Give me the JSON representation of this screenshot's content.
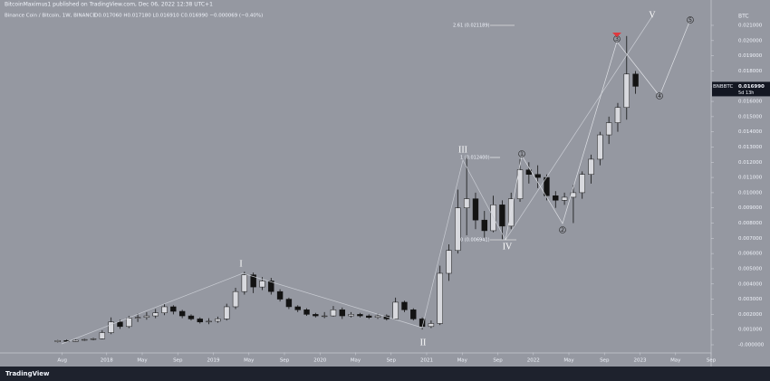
{
  "header": "BitcoinMaximus1 published on TradingView.com, Dec 06, 2022 12:38 UTC+1",
  "footer": "TradingView",
  "chart_data": {
    "type": "candlestick",
    "title": "Binance Coin / Bitcoin, 1W, BINANCE",
    "ohlc_text": "O0.017060  H0.017180  L0.016910  C0.016990  −0.000069 (−0.40%)",
    "y_axis_label": "BTC",
    "symbol": "BNBBTC",
    "last_price": {
      "value": 0.01699,
      "label": "0.016990"
    },
    "countdown": "5d 13h",
    "up_color": "#d8d9de",
    "down_color": "#131313",
    "wick_color": "#131313",
    "x": [
      "2017-07",
      "2017-08",
      "2017-09",
      "2017-10",
      "2017-11",
      "2017-12",
      "2018-01",
      "2018-02",
      "2018-03",
      "2018-04",
      "2018-05",
      "2018-06",
      "2018-07",
      "2018-08",
      "2018-09",
      "2018-10",
      "2018-11",
      "2018-12",
      "2019-01",
      "2019-02",
      "2019-03",
      "2019-04",
      "2019-05",
      "2019-06",
      "2019-07",
      "2019-08",
      "2019-09",
      "2019-10",
      "2019-11",
      "2019-12",
      "2020-01",
      "2020-02",
      "2020-03",
      "2020-04",
      "2020-05",
      "2020-06",
      "2020-07",
      "2020-08",
      "2020-09",
      "2020-10",
      "2020-11",
      "2020-12",
      "2021-01",
      "2021-02",
      "2021-03",
      "2021-04",
      "2021-05",
      "2021-06",
      "2021-07",
      "2021-08",
      "2021-09",
      "2021-10",
      "2021-11",
      "2021-12",
      "2022-01",
      "2022-02",
      "2022-03",
      "2022-04",
      "2022-05",
      "2022-06",
      "2022-07",
      "2022-08",
      "2022-09",
      "2022-10",
      "2022-11",
      "2022-12"
    ],
    "open": [
      0.0002,
      0.00028,
      0.00022,
      0.0003,
      0.00035,
      0.0004,
      0.0008,
      0.0015,
      0.0012,
      0.00175,
      0.0018,
      0.0019,
      0.0021,
      0.0025,
      0.0022,
      0.0019,
      0.0017,
      0.0015,
      0.00155,
      0.0017,
      0.0025,
      0.0035,
      0.0046,
      0.0038,
      0.0042,
      0.0035,
      0.003,
      0.0025,
      0.0023,
      0.002,
      0.0019,
      0.0019,
      0.0023,
      0.0019,
      0.002,
      0.0019,
      0.0018,
      0.0019,
      0.0017,
      0.0028,
      0.0023,
      0.0017,
      0.0012,
      0.0014,
      0.0047,
      0.0062,
      0.009,
      0.0096,
      0.0082,
      0.0075,
      0.0092,
      0.0078,
      0.0096,
      0.0115,
      0.0112,
      0.011,
      0.0098,
      0.0095,
      0.0097,
      0.01,
      0.0112,
      0.0122,
      0.0138,
      0.0146,
      0.0156,
      0.0178
    ],
    "high": [
      0.00032,
      0.00034,
      0.00036,
      0.0004,
      0.00046,
      0.00095,
      0.0018,
      0.00165,
      0.0019,
      0.00205,
      0.00215,
      0.00235,
      0.0027,
      0.0026,
      0.0023,
      0.002,
      0.0018,
      0.00175,
      0.00185,
      0.0027,
      0.00375,
      0.0048,
      0.00475,
      0.00445,
      0.0044,
      0.00365,
      0.0031,
      0.0026,
      0.0024,
      0.0021,
      0.00215,
      0.00255,
      0.00245,
      0.00215,
      0.0021,
      0.002,
      0.00205,
      0.002,
      0.0031,
      0.0029,
      0.0024,
      0.0018,
      0.0016,
      0.0052,
      0.0066,
      0.0102,
      0.0124,
      0.01,
      0.0088,
      0.0098,
      0.0095,
      0.01,
      0.0122,
      0.012,
      0.0118,
      0.0112,
      0.0101,
      0.01,
      0.0105,
      0.0114,
      0.0125,
      0.014,
      0.015,
      0.0159,
      0.0203,
      0.018
    ],
    "low": [
      0.00015,
      0.00018,
      0.0002,
      0.00026,
      0.0003,
      0.00036,
      0.0007,
      0.00105,
      0.0011,
      0.0015,
      0.00165,
      0.00175,
      0.00195,
      0.002,
      0.00175,
      0.0016,
      0.0014,
      0.00135,
      0.00145,
      0.0016,
      0.00235,
      0.0033,
      0.0034,
      0.0036,
      0.0033,
      0.00285,
      0.00235,
      0.00215,
      0.0019,
      0.0018,
      0.00175,
      0.00185,
      0.0017,
      0.0018,
      0.0018,
      0.0017,
      0.0017,
      0.0016,
      0.00165,
      0.00215,
      0.0016,
      0.001,
      0.0011,
      0.0013,
      0.0042,
      0.006,
      0.0072,
      0.0076,
      0.007,
      0.0074,
      0.00694,
      0.0076,
      0.0094,
      0.0106,
      0.0103,
      0.0095,
      0.009,
      0.0092,
      0.008,
      0.0096,
      0.0106,
      0.0118,
      0.0132,
      0.014,
      0.0148,
      0.0165
    ],
    "close": [
      0.00028,
      0.00022,
      0.0003,
      0.00035,
      0.0004,
      0.0008,
      0.0015,
      0.0012,
      0.00175,
      0.0018,
      0.0019,
      0.0021,
      0.0025,
      0.0022,
      0.0019,
      0.0017,
      0.0015,
      0.00155,
      0.0017,
      0.0025,
      0.0035,
      0.0046,
      0.0038,
      0.0042,
      0.0035,
      0.003,
      0.0025,
      0.0023,
      0.002,
      0.0019,
      0.0019,
      0.0023,
      0.0019,
      0.002,
      0.0019,
      0.0018,
      0.0019,
      0.0017,
      0.0028,
      0.0023,
      0.0017,
      0.0012,
      0.0014,
      0.0047,
      0.0062,
      0.009,
      0.0096,
      0.0082,
      0.0075,
      0.0092,
      0.0078,
      0.0096,
      0.0115,
      0.0112,
      0.011,
      0.0098,
      0.0095,
      0.0097,
      0.01,
      0.0112,
      0.0122,
      0.0138,
      0.0146,
      0.0156,
      0.0178,
      0.01699
    ],
    "xlim": [
      "2017-01",
      "2023-09"
    ],
    "xticks": [
      {
        "value": "2017-08",
        "label": "Aug"
      },
      {
        "value": "2018-01",
        "label": "2018"
      },
      {
        "value": "2018-05",
        "label": "May"
      },
      {
        "value": "2018-09",
        "label": "Sep"
      },
      {
        "value": "2019-01",
        "label": "2019"
      },
      {
        "value": "2019-05",
        "label": "May"
      },
      {
        "value": "2019-09",
        "label": "Sep"
      },
      {
        "value": "2020-01",
        "label": "2020"
      },
      {
        "value": "2020-05",
        "label": "May"
      },
      {
        "value": "2020-09",
        "label": "Sep"
      },
      {
        "value": "2021-01",
        "label": "2021"
      },
      {
        "value": "2021-05",
        "label": "May"
      },
      {
        "value": "2021-09",
        "label": "Sep"
      },
      {
        "value": "2022-01",
        "label": "2022"
      },
      {
        "value": "2022-05",
        "label": "May"
      },
      {
        "value": "2022-09",
        "label": "Sep"
      },
      {
        "value": "2023-01",
        "label": "2023"
      },
      {
        "value": "2023-05",
        "label": "May"
      },
      {
        "value": "2023-09",
        "label": "Sep"
      }
    ],
    "ylim": [
      -0.0005,
      0.0225
    ],
    "yticks": [
      {
        "value": 0.021,
        "label": "0.021000"
      },
      {
        "value": 0.02,
        "label": "0.020000"
      },
      {
        "value": 0.019,
        "label": "0.019000"
      },
      {
        "value": 0.018,
        "label": "0.018000"
      },
      {
        "value": 0.017,
        "label": "0.017000"
      },
      {
        "value": 0.016,
        "label": "0.016000"
      },
      {
        "value": 0.015,
        "label": "0.015000"
      },
      {
        "value": 0.014,
        "label": "0.014000"
      },
      {
        "value": 0.013,
        "label": "0.013000"
      },
      {
        "value": 0.012,
        "label": "0.012000"
      },
      {
        "value": 0.011,
        "label": "0.011000"
      },
      {
        "value": 0.01,
        "label": "0.010000"
      },
      {
        "value": 0.009,
        "label": "0.009000"
      },
      {
        "value": 0.008,
        "label": "0.008000"
      },
      {
        "value": 0.007,
        "label": "0.007000"
      },
      {
        "value": 0.006,
        "label": "0.006000"
      },
      {
        "value": 0.005,
        "label": "0.005000"
      },
      {
        "value": 0.004,
        "label": "0.004000"
      },
      {
        "value": 0.003,
        "label": "0.003000"
      },
      {
        "value": 0.002,
        "label": "0.002000"
      },
      {
        "value": 0.001,
        "label": "0.001000"
      },
      {
        "value": 0,
        "label": "-0.000000"
      }
    ],
    "annotations": {
      "fib_261": "2.61 (0.021189)",
      "fib_1": "1 (0.012400)",
      "fib_0": "0 (0.006941)",
      "waves": [
        "I",
        "II",
        "III",
        "IV",
        "V"
      ],
      "subwaves": [
        "1",
        "2",
        "3",
        "4",
        "5"
      ]
    }
  }
}
